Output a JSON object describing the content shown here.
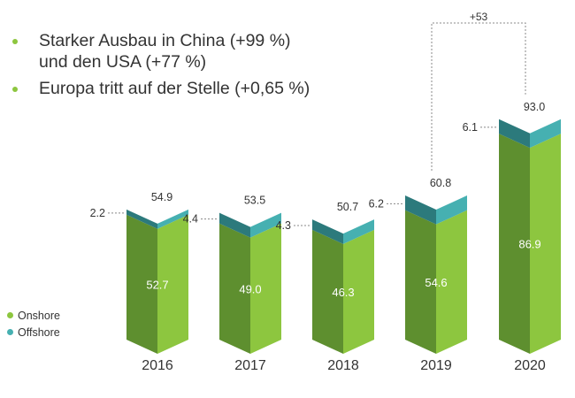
{
  "bullets": [
    {
      "text": "Starker Ausbau in China (+99 %)\nund den USA (+77 %)"
    },
    {
      "text": "Europa tritt auf der Stelle (+0,65 %)"
    }
  ],
  "chart_data": {
    "type": "bar",
    "stacked": true,
    "categories": [
      "2016",
      "2017",
      "2018",
      "2019",
      "2020"
    ],
    "series": [
      {
        "name": "Onshore",
        "values": [
          52.7,
          49.0,
          46.3,
          54.6,
          86.9
        ],
        "labels": [
          "52.7",
          "49.0",
          "46.3",
          "54.6",
          "86.9"
        ]
      },
      {
        "name": "Offshore",
        "values": [
          2.2,
          4.4,
          4.3,
          6.2,
          6.1
        ],
        "labels": [
          "2.2",
          "4.4",
          "4.3",
          "6.2",
          "6.1"
        ]
      }
    ],
    "totals": [
      54.9,
      53.5,
      50.7,
      60.8,
      93.0
    ],
    "total_labels": [
      "54.9",
      "53.5",
      "50.7",
      "60.8",
      "93.0"
    ],
    "annotation": {
      "from": "2019",
      "to": "2020",
      "label": "+53"
    },
    "legend_position": "bottom-left",
    "colors": {
      "onshore_light": "#8dc63f",
      "onshore_dark": "#5e8f2f",
      "offshore_light": "#46b0b1",
      "offshore_dark": "#2c7a7c",
      "text": "#333333",
      "bullet": "#8dc63f"
    }
  }
}
